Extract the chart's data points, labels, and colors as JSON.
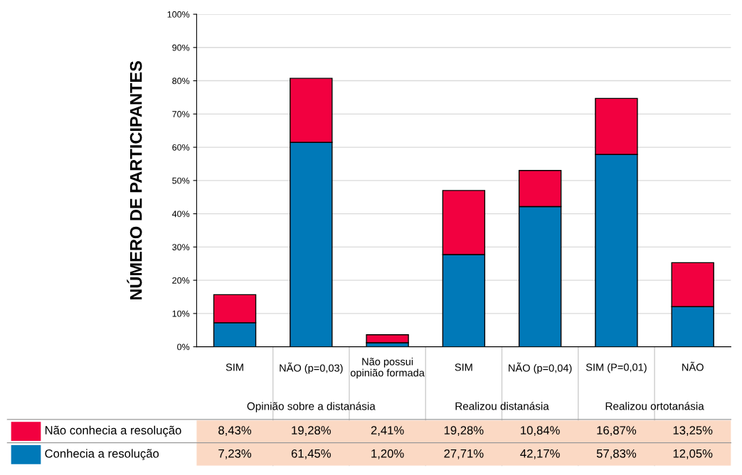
{
  "chart_data": {
    "type": "bar",
    "stacked": true,
    "ylabel": "NÚMERO DE PARTICIPANTES",
    "categories": [
      "SIM",
      "NÃO (p=0,03)",
      "Não possui\nopinião formada",
      "SIM",
      "NÃO (p=0,04)",
      "SIM (P=0,01)",
      "NÃO"
    ],
    "series": [
      {
        "name": "Conhecia a resolução",
        "color": "#0079b8",
        "values": [
          7.23,
          61.45,
          1.2,
          27.71,
          42.17,
          57.83,
          12.05
        ],
        "value_labels": [
          "7,23%",
          "61,45%",
          "1,20%",
          "27,71%",
          "42,17%",
          "57,83%",
          "12,05%"
        ]
      },
      {
        "name": "Não conhecia a resolução",
        "color": "#f20040",
        "values": [
          8.43,
          19.28,
          2.41,
          19.28,
          10.84,
          16.87,
          13.25
        ],
        "value_labels": [
          "8,43%",
          "19,28%",
          "2,41%",
          "19,28%",
          "10,84%",
          "16,87%",
          "13,25%"
        ]
      }
    ],
    "annotations": [
      "Opinião sobre a distanásia",
      "Realizou distanásia",
      "Realizou ortotanásia"
    ],
    "ylim": [
      0,
      100
    ],
    "yticks": [
      {
        "value": 0,
        "label": "0%"
      },
      {
        "value": 10,
        "label": "10%"
      },
      {
        "value": 20,
        "label": "20%"
      },
      {
        "value": 30,
        "label": "30%"
      },
      {
        "value": 40,
        "label": "40%"
      },
      {
        "value": 50,
        "label": "50%"
      },
      {
        "value": 60,
        "label": "60%"
      },
      {
        "value": 70,
        "label": "70%"
      },
      {
        "value": 80,
        "label": "80%"
      },
      {
        "value": 90,
        "label": "90%"
      },
      {
        "value": 100,
        "label": "100%"
      }
    ],
    "grid": "y",
    "legend": "bottom left"
  }
}
